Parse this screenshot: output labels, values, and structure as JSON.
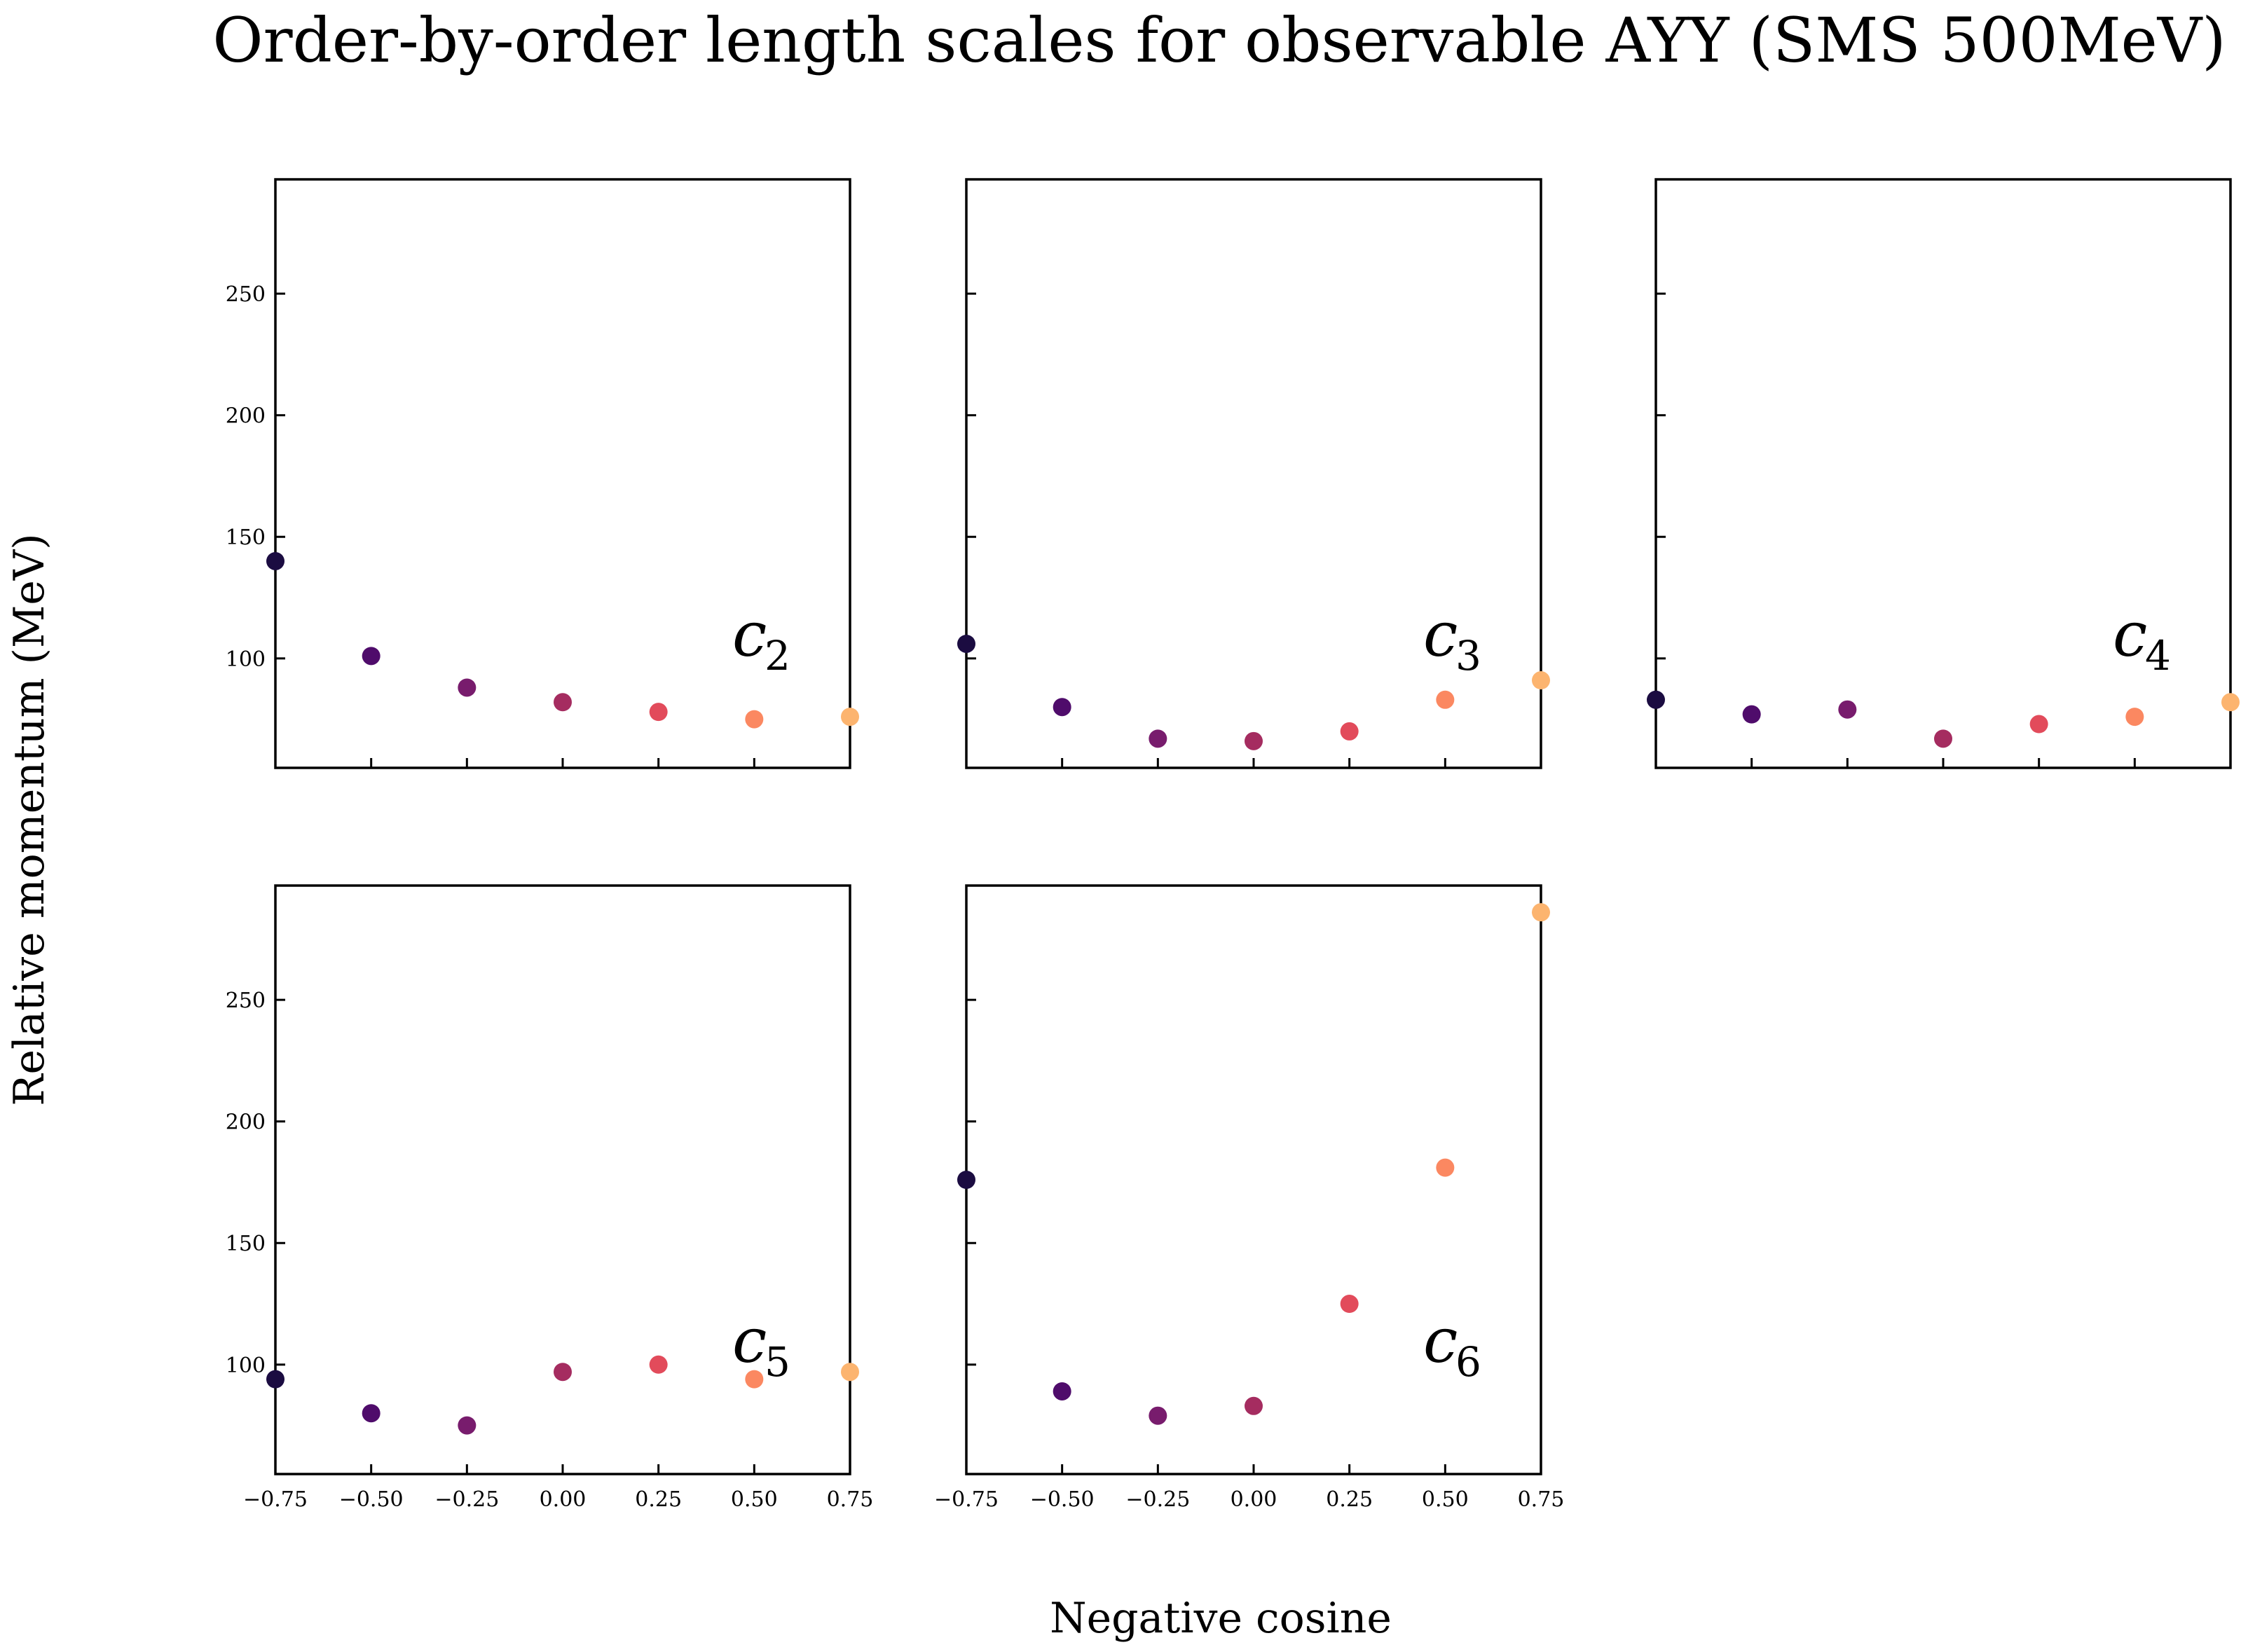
{
  "chart_data": {
    "type": "scatter",
    "title": "Order-by-order length scales for observable AYY (SMS 500MeV)",
    "xlabel": "Negative cosine",
    "ylabel": "Relative momentum (MeV)",
    "xlim": [
      -0.75,
      0.75
    ],
    "ylim": [
      55,
      297
    ],
    "xticks": [
      -0.75,
      -0.5,
      -0.25,
      0.0,
      0.25,
      0.5,
      0.75
    ],
    "xtick_labels": [
      "−0.75",
      "−0.50",
      "−0.25",
      "0.00",
      "0.25",
      "0.50",
      "0.75"
    ],
    "yticks": [
      100,
      150,
      200,
      250
    ],
    "ytick_labels": [
      "100",
      "150",
      "200",
      "250"
    ],
    "grid": false,
    "legend": "none",
    "point_colors": [
      "#1b0c41",
      "#4f0c6b",
      "#781c6d",
      "#a52c60",
      "#e24b5b",
      "#fb8861",
      "#fcb46f"
    ],
    "x": [
      -0.75,
      -0.5,
      -0.25,
      0.0,
      0.25,
      0.5,
      0.75
    ],
    "panels": [
      {
        "label": "c",
        "sub": "2",
        "values": [
          140,
          101,
          88,
          82,
          78,
          75,
          76
        ]
      },
      {
        "label": "c",
        "sub": "3",
        "values": [
          106,
          80,
          67,
          66,
          70,
          83,
          91
        ]
      },
      {
        "label": "c",
        "sub": "4",
        "values": [
          83,
          77,
          79,
          67,
          73,
          76,
          82
        ]
      },
      {
        "label": "c",
        "sub": "5",
        "values": [
          94,
          80,
          75,
          97,
          100,
          94,
          97
        ]
      },
      {
        "label": "c",
        "sub": "6",
        "values": [
          176,
          89,
          79,
          83,
          125,
          181,
          286
        ]
      }
    ]
  }
}
